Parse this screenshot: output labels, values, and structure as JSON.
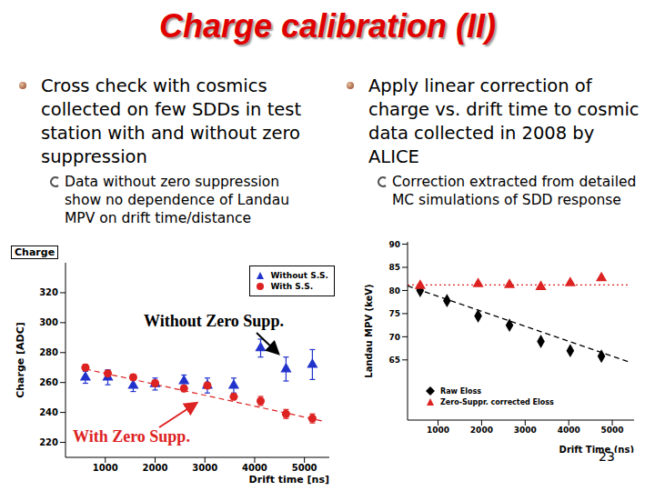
{
  "slide": {
    "title": "Charge calibration (II)",
    "columns": [
      {
        "bullet": "Cross check with cosmics collected on few SDDs in test station with and without zero suppression",
        "sub_bullet": "Data without zero suppression show no dependence of Landau MPV on drift time/distance"
      },
      {
        "bullet": "Apply linear correction of charge vs. drift time to cosmic data collected in 2008 by ALICE",
        "sub_bullet": "Correction extracted from detailed MC simulations of SDD response"
      }
    ],
    "page_number": 23
  },
  "chart_data": [
    {
      "type": "scatter",
      "title": "Charge",
      "x_label": "Drift time [ns]",
      "y_label": "Charge [ADC]",
      "xlim": [
        200,
        5500
      ],
      "xticks": [
        1000,
        2000,
        3000,
        4000,
        5000
      ],
      "ylim": [
        210,
        340
      ],
      "yticks": [
        220,
        240,
        260,
        280,
        300,
        320
      ],
      "grid": false,
      "legend": "upper right",
      "series": [
        {
          "name": "Without S.S.",
          "color": "#2233cc",
          "marker": "triangle",
          "x": [
            600,
            1050,
            1560,
            2000,
            2580,
            3050,
            3580,
            4120,
            4630,
            5160
          ],
          "values": [
            263.5,
            263.5,
            258,
            259,
            261,
            258,
            258,
            283,
            269,
            272
          ],
          "errors": [
            4,
            5,
            4,
            4,
            4,
            5,
            5,
            6,
            8,
            10
          ]
        },
        {
          "name": "With S.S.",
          "color": "#dd2222",
          "marker": "circle",
          "x": [
            600,
            1050,
            1560,
            2000,
            2580,
            3050,
            3580,
            4120,
            4630,
            5160
          ],
          "values": [
            270,
            266,
            263.5,
            259.5,
            256,
            258,
            250.5,
            247.7,
            239,
            236
          ],
          "errors": [
            2,
            2,
            2,
            2,
            2,
            2,
            2,
            3,
            3,
            3
          ],
          "fit": {
            "x": [
              600,
              5400
            ],
            "values": [
              269,
              234
            ]
          },
          "line_style": "dashed"
        }
      ],
      "annotations": [
        {
          "text": "Without Zero Supp.",
          "color": "#000000"
        },
        {
          "text": "With Zero Supp.",
          "color": "#dd2222"
        }
      ]
    },
    {
      "type": "scatter",
      "x_label": "Drift Time (ns)",
      "y_label": "Landau MPV (keV)",
      "xlim": [
        300,
        5500
      ],
      "xticks": [
        1000,
        2000,
        3000,
        4000,
        5000
      ],
      "ylim": [
        52,
        90.5
      ],
      "yticks": [
        65,
        70,
        75,
        80,
        85,
        90
      ],
      "grid": false,
      "legend": "lower left",
      "series": [
        {
          "name": "Raw Eloss",
          "color": "#000000",
          "marker": "diamond",
          "x": [
            590,
            1205,
            1920,
            2640,
            3360,
            4035,
            4750
          ],
          "values": [
            80,
            77.8,
            74.5,
            72.5,
            69,
            67,
            65.8
          ],
          "fit": {
            "x": [
              300,
              5400
            ],
            "values": [
              81,
              64.5
            ]
          },
          "line_style": "dashed"
        },
        {
          "name": "Zero-Suppr. corrected Eloss",
          "color": "#dd2222",
          "marker": "triangle",
          "x": [
            590,
            1920,
            2640,
            3360,
            4035,
            4750
          ],
          "values": [
            81,
            81.4,
            81.2,
            80.8,
            81.6,
            82.7
          ],
          "fit": {
            "x": [
              300,
              5400
            ],
            "values": [
              81.2,
              81.2
            ]
          },
          "line_style": "dotted"
        }
      ]
    }
  ]
}
